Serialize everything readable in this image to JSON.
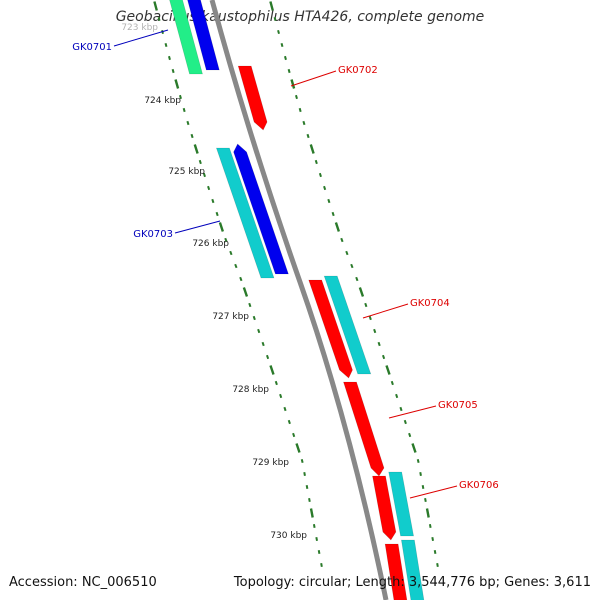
{
  "title": "Geobacillus kaustophilus HTA426, complete genome",
  "footer": {
    "accession": "Accession: NC_006510",
    "summary": "Topology: circular; Length: 3,544,776 bp; Genes: 3,611"
  },
  "colors": {
    "backbone": "#888888",
    "ticks": "#2a7a2a",
    "forward_label": "#0000bb",
    "reverse_label": "#dd0000",
    "gene_red": "#ff0000",
    "gene_blue": "#0000ee",
    "gene_cyan": "#11cccc",
    "gene_green": "#22ee88"
  },
  "scale": {
    "labels": [
      "723 kbp",
      "724 kbp",
      "725 kbp",
      "726 kbp",
      "727 kbp",
      "728 kbp",
      "729 kbp",
      "730 kbp"
    ]
  },
  "gene_labels": [
    {
      "id": "GK0701",
      "strand": "forward"
    },
    {
      "id": "GK0702",
      "strand": "reverse"
    },
    {
      "id": "GK0703",
      "strand": "forward"
    },
    {
      "id": "GK0704",
      "strand": "reverse"
    },
    {
      "id": "GK0705",
      "strand": "reverse"
    },
    {
      "id": "GK0706",
      "strand": "reverse"
    }
  ]
}
